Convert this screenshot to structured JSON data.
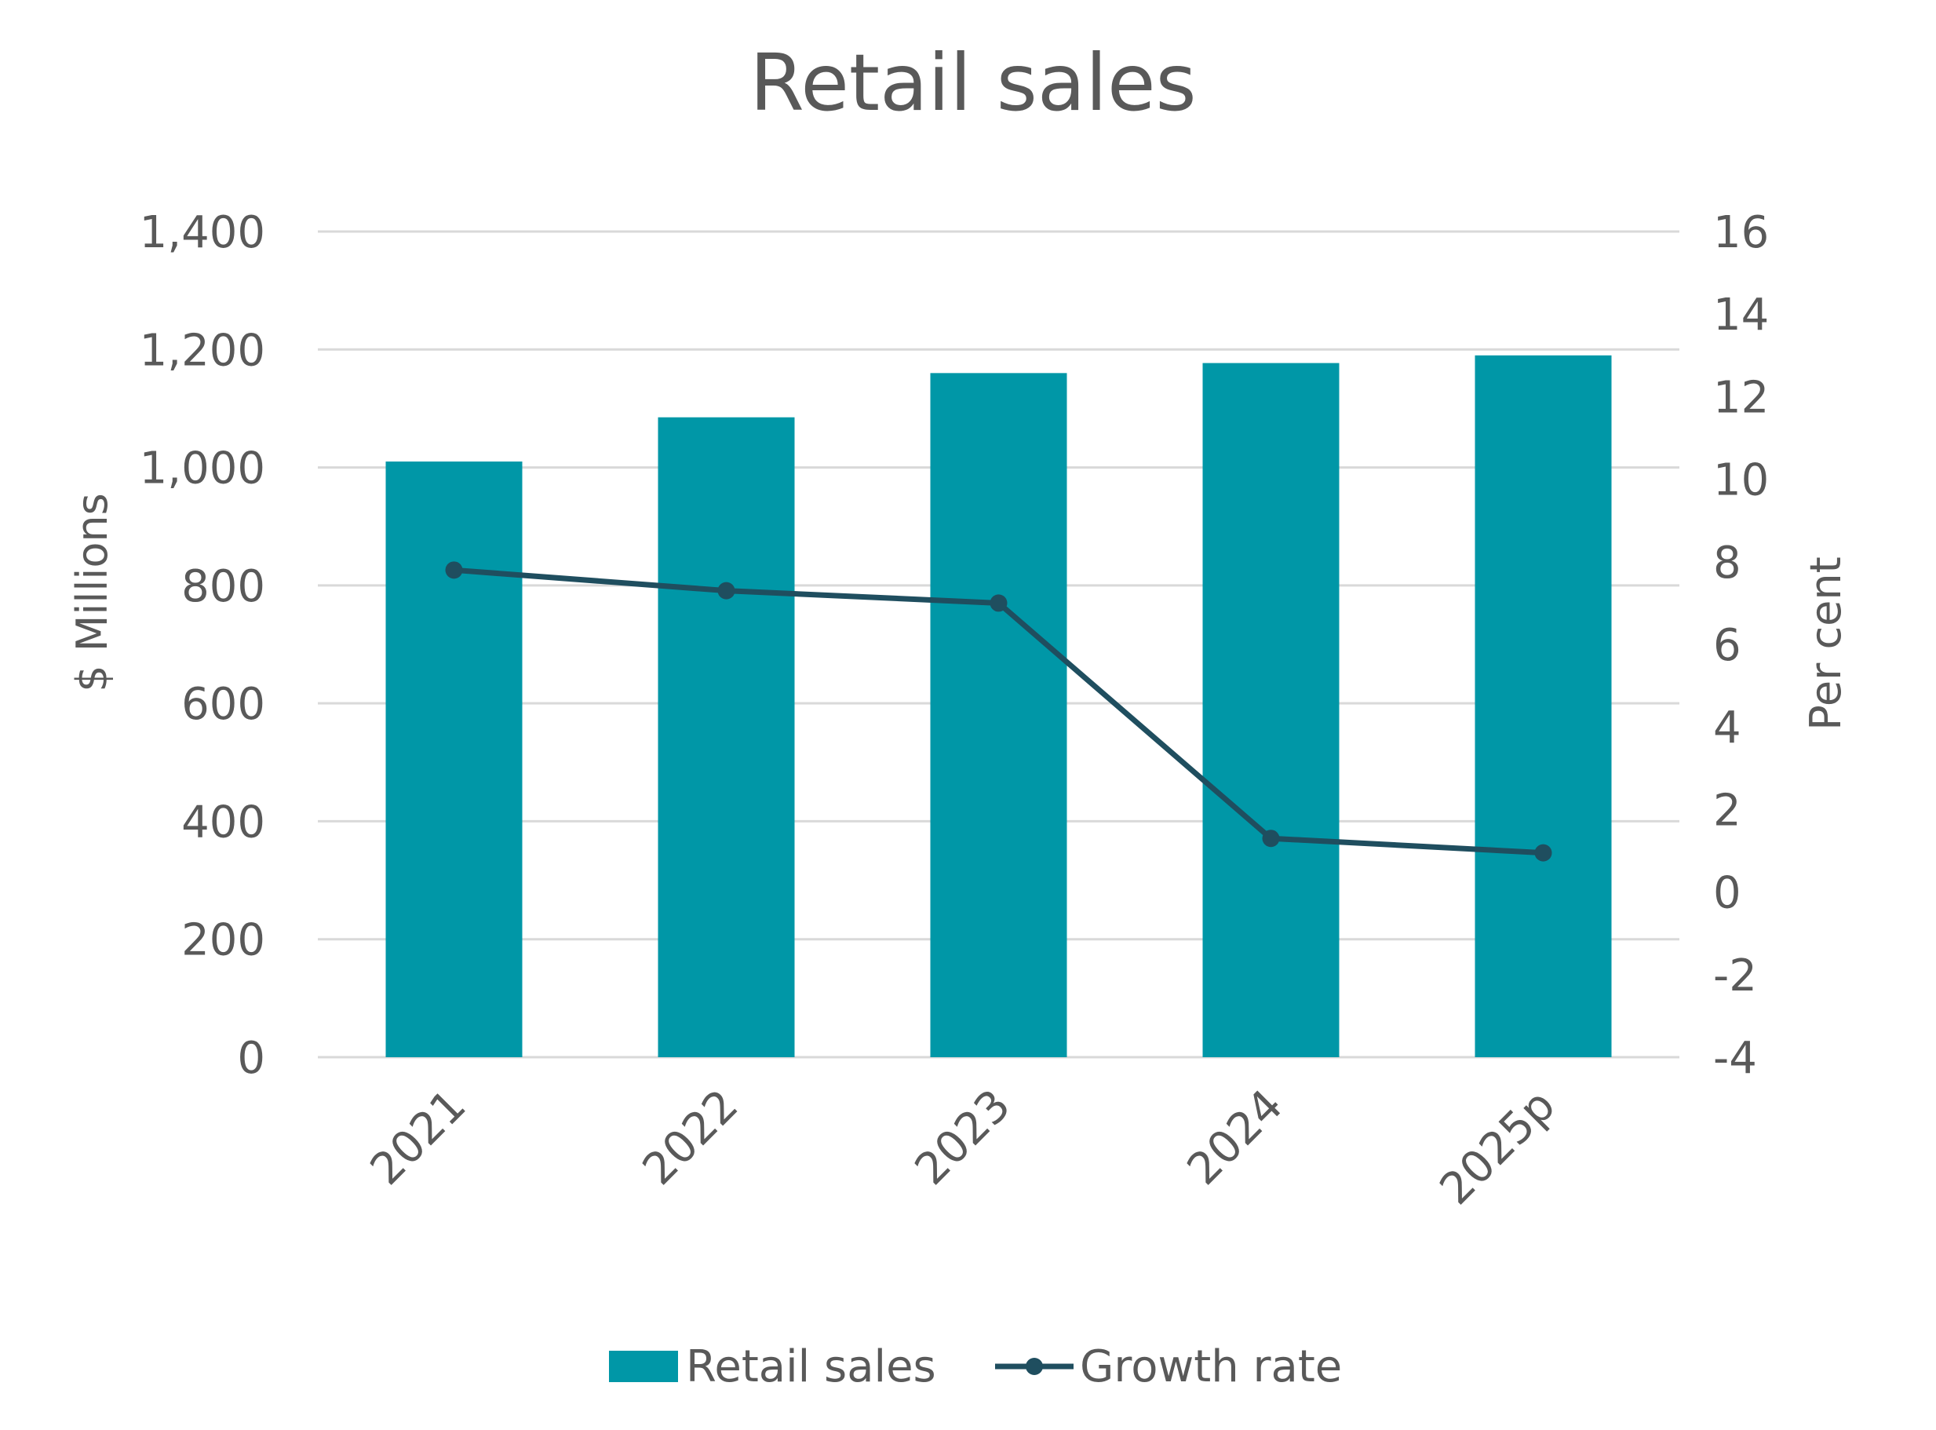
{
  "chart_data": {
    "type": "bar",
    "title": "Retail sales",
    "categories": [
      "2021",
      "2022",
      "2023",
      "2024",
      "2025p"
    ],
    "series": [
      {
        "name": "Retail sales",
        "type": "bar",
        "axis": "left",
        "values": [
          1010,
          1085,
          1160,
          1177,
          1190
        ]
      },
      {
        "name": "Growth rate",
        "type": "line",
        "axis": "right",
        "values": [
          7.8,
          7.3,
          7.0,
          1.3,
          0.95
        ]
      }
    ],
    "ylabel": "$ Millions",
    "ylim": [
      0,
      1400
    ],
    "yticks": [
      "0",
      "200",
      "400",
      "600",
      "800",
      "1,000",
      "1,200",
      "1,400"
    ],
    "y2label": "Per cent",
    "y2lim": [
      -4,
      16
    ],
    "y2ticks": [
      "-4",
      "-2",
      "0",
      "2",
      "4",
      "6",
      "8",
      "10",
      "12",
      "14",
      "16"
    ],
    "grid": true,
    "legend_position": "bottom",
    "colors": {
      "bar": "#0097a7",
      "line": "#1f4e5f",
      "grid": "#d9d9d9",
      "text": "#595959"
    }
  }
}
